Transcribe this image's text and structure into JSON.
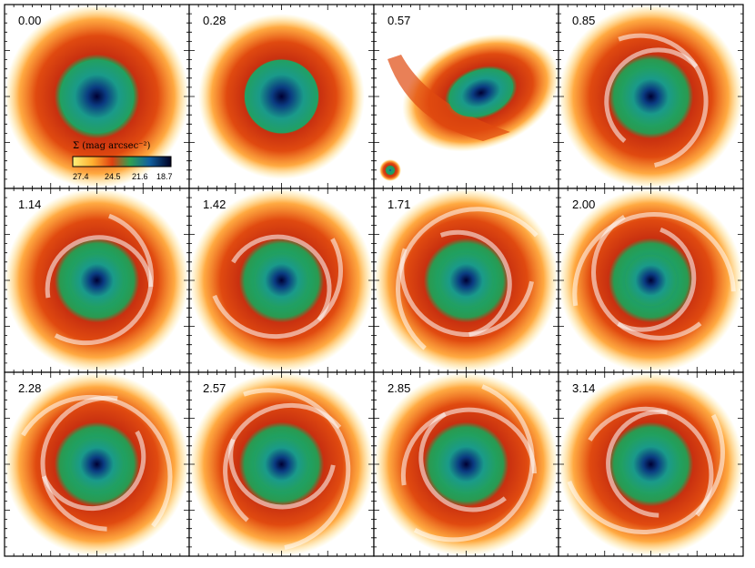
{
  "figure": {
    "panels": [
      {
        "label": "0.00",
        "morphology": "smooth disk"
      },
      {
        "label": "0.28",
        "morphology": "smooth disk"
      },
      {
        "label": "0.57",
        "morphology": "perturbed disk with tidal tail"
      },
      {
        "label": "0.85",
        "morphology": "strong two-arm spiral"
      },
      {
        "label": "1.14",
        "morphology": "two-arm spiral"
      },
      {
        "label": "1.42",
        "morphology": "two-arm spiral"
      },
      {
        "label": "1.71",
        "morphology": "spiral with rings"
      },
      {
        "label": "2.00",
        "morphology": "spiral with rings"
      },
      {
        "label": "2.28",
        "morphology": "ringed disk"
      },
      {
        "label": "2.57",
        "morphology": "ringed disk"
      },
      {
        "label": "2.85",
        "morphology": "ringed disk"
      },
      {
        "label": "3.14",
        "morphology": "ringed disk"
      }
    ],
    "colorbar": {
      "title": "Σ (mag arcsec⁻²)",
      "ticks": [
        "27.4",
        "24.5",
        "21.6",
        "18.7"
      ],
      "colors": [
        "#ffee55",
        "#ffa020",
        "#dd3010",
        "#1aa060",
        "#0a3070",
        "#000022"
      ]
    }
  }
}
